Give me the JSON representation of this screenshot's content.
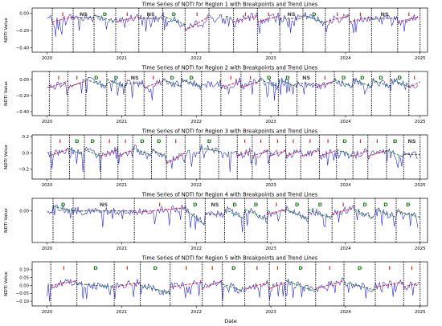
{
  "figure": {
    "xlabel": "Date"
  },
  "chart_data": [
    {
      "type": "line",
      "title": "Time Series of NDTI for Region 1 with Breakpoints and Trend Lines",
      "ylabel": "NDTI Value",
      "xlim": [
        2019.8,
        2025.1
      ],
      "ylim": [
        -0.45,
        0.06
      ],
      "yticks": [
        {
          "v": 0.0,
          "label": "0.00"
        },
        {
          "v": -0.2,
          "label": "−0.20"
        },
        {
          "v": -0.4,
          "label": "−0.40"
        }
      ],
      "xticks": [
        2020,
        2021,
        2022,
        2023,
        2024,
        2025
      ],
      "breakpoints": [
        2020.07,
        2020.35,
        2020.63,
        2020.92,
        2021.23,
        2021.55,
        2021.85,
        2022.17,
        2022.5,
        2022.82,
        2023.12,
        2023.43,
        2023.73,
        2024.05,
        2024.35,
        2024.7,
        2025.0
      ],
      "segments": [
        {
          "label": "I",
          "x0": 2020.07,
          "x1": 2020.35,
          "y0": -0.1,
          "y1": -0.04
        },
        {
          "label": "NS",
          "x0": 2020.35,
          "x1": 2020.63,
          "y0": -0.05,
          "y1": -0.05
        },
        {
          "label": "D",
          "x0": 2020.63,
          "x1": 2020.92,
          "y0": -0.02,
          "y1": -0.1
        },
        {
          "label": "I",
          "x0": 2020.92,
          "x1": 2021.23,
          "y0": -0.1,
          "y1": -0.04
        },
        {
          "label": "NS",
          "x0": 2021.23,
          "x1": 2021.55,
          "y0": -0.06,
          "y1": -0.06
        },
        {
          "label": "D",
          "x0": 2021.55,
          "x1": 2021.85,
          "y0": -0.03,
          "y1": -0.13
        },
        {
          "label": "I",
          "x0": 2021.85,
          "x1": 2022.17,
          "y0": -0.2,
          "y1": -0.04
        },
        {
          "label": "I",
          "x0": 2022.5,
          "x1": 2022.82,
          "y0": -0.1,
          "y1": -0.03
        },
        {
          "label": "I",
          "x0": 2022.82,
          "x1": 2023.12,
          "y0": -0.1,
          "y1": -0.03
        },
        {
          "label": "NS",
          "x0": 2023.12,
          "x1": 2023.43,
          "y0": -0.06,
          "y1": -0.06
        },
        {
          "label": "D",
          "x0": 2023.43,
          "x1": 2023.73,
          "y0": -0.02,
          "y1": -0.11
        },
        {
          "label": "I",
          "x0": 2023.73,
          "x1": 2024.05,
          "y0": -0.1,
          "y1": -0.03
        },
        {
          "label": "I",
          "x0": 2024.05,
          "x1": 2024.35,
          "y0": -0.1,
          "y1": -0.04
        },
        {
          "label": "NS",
          "x0": 2024.35,
          "x1": 2024.7,
          "y0": -0.06,
          "y1": -0.06
        },
        {
          "label": "I",
          "x0": 2024.7,
          "x1": 2025.0,
          "y0": -0.1,
          "y1": -0.04
        }
      ]
    },
    {
      "type": "line",
      "title": "Time Series of NDTI for Region 2 with Breakpoints and Trend Lines",
      "ylabel": "NDTI Value",
      "xlim": [
        2019.8,
        2025.1
      ],
      "ylim": [
        -0.45,
        0.1
      ],
      "yticks": [
        {
          "v": 0.0,
          "label": "0.00"
        },
        {
          "v": -0.2,
          "label": "−0.20"
        },
        {
          "v": -0.4,
          "label": "−0.40"
        }
      ],
      "xticks": [
        2020,
        2021,
        2022,
        2023,
        2024,
        2025
      ],
      "breakpoints": [
        2020.03,
        2020.28,
        2020.52,
        2020.8,
        2021.05,
        2021.3,
        2021.55,
        2021.8,
        2022.07,
        2022.33,
        2022.6,
        2022.85,
        2023.1,
        2023.35,
        2023.6,
        2023.85,
        2024.1,
        2024.35,
        2024.6,
        2024.85
      ],
      "segments": [
        {
          "label": "I",
          "x0": 2020.03,
          "x1": 2020.28,
          "y0": -0.1,
          "y1": -0.02
        },
        {
          "label": "I",
          "x0": 2020.28,
          "x1": 2020.52,
          "y0": -0.1,
          "y1": -0.02
        },
        {
          "label": "D",
          "x0": 2020.52,
          "x1": 2020.8,
          "y0": 0.0,
          "y1": -0.09
        },
        {
          "label": "D",
          "x0": 2020.8,
          "x1": 2021.05,
          "y0": 0.0,
          "y1": -0.09
        },
        {
          "label": "NS",
          "x0": 2021.05,
          "x1": 2021.3,
          "y0": -0.05,
          "y1": -0.05
        },
        {
          "label": "I",
          "x0": 2021.3,
          "x1": 2021.55,
          "y0": -0.1,
          "y1": -0.02
        },
        {
          "label": "D",
          "x0": 2021.55,
          "x1": 2021.8,
          "y0": 0.0,
          "y1": -0.09
        },
        {
          "label": "D",
          "x0": 2021.8,
          "x1": 2022.07,
          "y0": 0.0,
          "y1": -0.09
        },
        {
          "label": "I",
          "x0": 2022.33,
          "x1": 2022.6,
          "y0": -0.1,
          "y1": -0.02
        },
        {
          "label": "I",
          "x0": 2022.6,
          "x1": 2022.85,
          "y0": -0.1,
          "y1": -0.02
        },
        {
          "label": "D",
          "x0": 2022.85,
          "x1": 2023.1,
          "y0": 0.0,
          "y1": -0.09
        },
        {
          "label": "D",
          "x0": 2023.1,
          "x1": 2023.35,
          "y0": 0.0,
          "y1": -0.09
        },
        {
          "label": "NS",
          "x0": 2023.35,
          "x1": 2023.6,
          "y0": -0.05,
          "y1": -0.05
        },
        {
          "label": "I",
          "x0": 2023.6,
          "x1": 2023.85,
          "y0": -0.1,
          "y1": -0.02
        },
        {
          "label": "D",
          "x0": 2023.85,
          "x1": 2024.1,
          "y0": 0.0,
          "y1": -0.09
        },
        {
          "label": "D",
          "x0": 2024.1,
          "x1": 2024.35,
          "y0": 0.0,
          "y1": -0.09
        },
        {
          "label": "D",
          "x0": 2024.35,
          "x1": 2024.6,
          "y0": 0.0,
          "y1": -0.09
        },
        {
          "label": "D",
          "x0": 2024.6,
          "x1": 2024.85,
          "y0": 0.0,
          "y1": -0.09
        },
        {
          "label": "I",
          "x0": 2024.85,
          "x1": 2025.0,
          "y0": -0.1,
          "y1": -0.03
        }
      ]
    },
    {
      "type": "line",
      "title": "Time Series of NDTI for Region 3 with Breakpoints and Trend Lines",
      "ylabel": "NDTI Value",
      "xlim": [
        2019.8,
        2025.1
      ],
      "ylim": [
        -0.32,
        0.22
      ],
      "yticks": [
        {
          "v": 0.2,
          "label": "0.2"
        },
        {
          "v": 0.0,
          "label": "0.0"
        },
        {
          "v": -0.2,
          "label": "−0.2"
        }
      ],
      "xticks": [
        2020,
        2021,
        2022,
        2023,
        2024,
        2025
      ],
      "breakpoints": [
        2020.05,
        2020.3,
        2020.5,
        2020.72,
        2020.95,
        2021.15,
        2021.4,
        2021.6,
        2021.85,
        2022.05,
        2022.3,
        2022.55,
        2022.75,
        2022.98,
        2023.2,
        2023.4,
        2023.65,
        2023.88,
        2024.1,
        2024.3,
        2024.55,
        2024.78,
        2025.0
      ],
      "segments": [
        {
          "label": "I",
          "x0": 2020.05,
          "x1": 2020.3,
          "y0": -0.03,
          "y1": 0.05
        },
        {
          "label": "D",
          "x0": 2020.3,
          "x1": 2020.5,
          "y0": 0.05,
          "y1": -0.03
        },
        {
          "label": "D",
          "x0": 2020.5,
          "x1": 2020.72,
          "y0": 0.04,
          "y1": -0.04
        },
        {
          "label": "I",
          "x0": 2020.72,
          "x1": 2020.95,
          "y0": -0.04,
          "y1": 0.04
        },
        {
          "label": "I",
          "x0": 2020.95,
          "x1": 2021.15,
          "y0": -0.04,
          "y1": 0.04
        },
        {
          "label": "D",
          "x0": 2021.15,
          "x1": 2021.4,
          "y0": 0.06,
          "y1": -0.03
        },
        {
          "label": "D",
          "x0": 2021.4,
          "x1": 2021.6,
          "y0": 0.04,
          "y1": -0.05
        },
        {
          "label": "I",
          "x0": 2021.6,
          "x1": 2021.85,
          "y0": -0.13,
          "y1": 0.0
        },
        {
          "label": "D",
          "x0": 2022.05,
          "x1": 2022.3,
          "y0": 0.06,
          "y1": 0.02
        },
        {
          "label": "I",
          "x0": 2022.55,
          "x1": 2022.75,
          "y0": -0.04,
          "y1": 0.03
        },
        {
          "label": "I",
          "x0": 2022.75,
          "x1": 2022.98,
          "y0": -0.04,
          "y1": 0.03
        },
        {
          "label": "I",
          "x0": 2022.98,
          "x1": 2023.2,
          "y0": -0.04,
          "y1": 0.03
        },
        {
          "label": "I",
          "x0": 2023.2,
          "x1": 2023.4,
          "y0": -0.04,
          "y1": 0.03
        },
        {
          "label": "I",
          "x0": 2023.4,
          "x1": 2023.65,
          "y0": -0.04,
          "y1": 0.03
        },
        {
          "label": "I",
          "x0": 2023.65,
          "x1": 2023.88,
          "y0": -0.04,
          "y1": 0.03
        },
        {
          "label": "D",
          "x0": 2023.88,
          "x1": 2024.1,
          "y0": 0.04,
          "y1": -0.04
        },
        {
          "label": "I",
          "x0": 2024.1,
          "x1": 2024.3,
          "y0": -0.04,
          "y1": 0.03
        },
        {
          "label": "I",
          "x0": 2024.3,
          "x1": 2024.55,
          "y0": -0.04,
          "y1": 0.03
        },
        {
          "label": "D",
          "x0": 2024.55,
          "x1": 2024.78,
          "y0": 0.03,
          "y1": -0.05
        },
        {
          "label": "NS",
          "x0": 2024.78,
          "x1": 2025.0,
          "y0": -0.02,
          "y1": -0.02
        }
      ]
    },
    {
      "type": "line",
      "title": "Time Series of NDTI for Region 4 with Breakpoints and Trend Lines",
      "ylabel": "NDTI Value",
      "xlim": [
        2019.8,
        2025.1
      ],
      "ylim": [
        -0.2,
        0.08
      ],
      "yticks": [
        {
          "v": 0.0,
          "label": "0.00"
        }
      ],
      "xticks": [
        2020,
        2021,
        2022,
        2023,
        2024,
        2025
      ],
      "breakpoints": [
        2020.08,
        2020.35,
        2021.17,
        2021.85,
        2022.12,
        2022.38,
        2022.65,
        2022.95,
        2023.2,
        2023.5,
        2023.82,
        2024.12,
        2024.4,
        2024.68,
        2025.0
      ],
      "segments": [
        {
          "label": "D",
          "x0": 2020.08,
          "x1": 2020.35,
          "y0": 0.03,
          "y1": 0.0
        },
        {
          "label": "NS",
          "x0": 2020.35,
          "x1": 2021.17,
          "y0": 0.0,
          "y1": 0.0
        },
        {
          "label": "I",
          "x0": 2021.17,
          "x1": 2021.85,
          "y0": -0.01,
          "y1": 0.02
        },
        {
          "label": "D",
          "x0": 2021.85,
          "x1": 2022.12,
          "y0": 0.01,
          "y1": -0.09
        },
        {
          "label": "NS",
          "x0": 2022.12,
          "x1": 2022.38,
          "y0": -0.02,
          "y1": -0.02
        },
        {
          "label": "D",
          "x0": 2022.38,
          "x1": 2022.65,
          "y0": 0.01,
          "y1": -0.05
        },
        {
          "label": "D",
          "x0": 2022.65,
          "x1": 2022.95,
          "y0": 0.01,
          "y1": -0.05
        },
        {
          "label": "I",
          "x0": 2022.95,
          "x1": 2023.2,
          "y0": -0.02,
          "y1": 0.01
        },
        {
          "label": "D",
          "x0": 2023.2,
          "x1": 2023.5,
          "y0": 0.01,
          "y1": -0.05
        },
        {
          "label": "D",
          "x0": 2023.5,
          "x1": 2023.82,
          "y0": 0.01,
          "y1": -0.05
        },
        {
          "label": "I",
          "x0": 2023.82,
          "x1": 2024.12,
          "y0": -0.02,
          "y1": 0.02
        },
        {
          "label": "D",
          "x0": 2024.12,
          "x1": 2024.4,
          "y0": 0.01,
          "y1": -0.05
        },
        {
          "label": "D",
          "x0": 2024.4,
          "x1": 2024.68,
          "y0": 0.01,
          "y1": -0.04
        },
        {
          "label": "D",
          "x0": 2024.68,
          "x1": 2025.0,
          "y0": 0.0,
          "y1": -0.04
        }
      ]
    },
    {
      "type": "line",
      "title": "Time Series of NDTI for Region 5 with Breakpoints and Trend Lines",
      "ylabel": "NDTI Value",
      "xlim": [
        2019.8,
        2025.1
      ],
      "ylim": [
        -0.13,
        0.15
      ],
      "yticks": [
        {
          "v": 0.1,
          "label": "0.10"
        },
        {
          "v": 0.05,
          "label": "0.05"
        },
        {
          "v": 0.0,
          "label": "0.00"
        },
        {
          "v": -0.05,
          "label": "−0.05"
        },
        {
          "v": -0.1,
          "label": "−0.10"
        }
      ],
      "xticks": [
        2020,
        2021,
        2022,
        2023,
        2024,
        2025
      ],
      "breakpoints": [
        2020.05,
        2020.4,
        2020.9,
        2021.25,
        2021.65,
        2022.08,
        2022.35,
        2022.65,
        2022.98,
        2023.2,
        2023.6,
        2023.98,
        2024.4,
        2024.78,
        2025.0
      ],
      "segments": [
        {
          "label": "I",
          "x0": 2020.05,
          "x1": 2020.4,
          "y0": 0.0,
          "y1": 0.03
        },
        {
          "label": "D",
          "x0": 2020.4,
          "x1": 2020.9,
          "y0": 0.01,
          "y1": -0.01
        },
        {
          "label": "I",
          "x0": 2020.9,
          "x1": 2021.25,
          "y0": -0.01,
          "y1": 0.02
        },
        {
          "label": "D",
          "x0": 2021.25,
          "x1": 2021.65,
          "y0": 0.0,
          "y1": -0.05
        },
        {
          "label": "I",
          "x0": 2021.65,
          "x1": 2022.08,
          "y0": -0.01,
          "y1": 0.02
        },
        {
          "label": "I",
          "x0": 2022.08,
          "x1": 2022.35,
          "y0": -0.02,
          "y1": 0.03
        },
        {
          "label": "D",
          "x0": 2022.35,
          "x1": 2022.65,
          "y0": 0.01,
          "y1": -0.04
        },
        {
          "label": "I",
          "x0": 2022.65,
          "x1": 2022.98,
          "y0": -0.02,
          "y1": 0.02
        },
        {
          "label": "I",
          "x0": 2022.98,
          "x1": 2023.2,
          "y0": -0.02,
          "y1": 0.02
        },
        {
          "label": "D",
          "x0": 2023.2,
          "x1": 2023.6,
          "y0": 0.03,
          "y1": -0.04
        },
        {
          "label": "I",
          "x0": 2023.6,
          "x1": 2023.98,
          "y0": -0.02,
          "y1": 0.03
        },
        {
          "label": "D",
          "x0": 2023.98,
          "x1": 2024.4,
          "y0": 0.02,
          "y1": -0.03
        },
        {
          "label": "I",
          "x0": 2024.4,
          "x1": 2024.78,
          "y0": -0.01,
          "y1": 0.02
        },
        {
          "label": "I",
          "x0": 2024.78,
          "x1": 2025.0,
          "y0": -0.01,
          "y1": 0.02
        }
      ]
    }
  ],
  "colors": {
    "series": "#2727c9",
    "trend_increase": "#e0245e",
    "trend_decrease": "#2e8b2e",
    "trend_ns": "#555555",
    "label_increase": "#c0392b",
    "label_decrease": "#1b7a1b",
    "label_ns": "#444444",
    "breakpoint": "#000000"
  }
}
